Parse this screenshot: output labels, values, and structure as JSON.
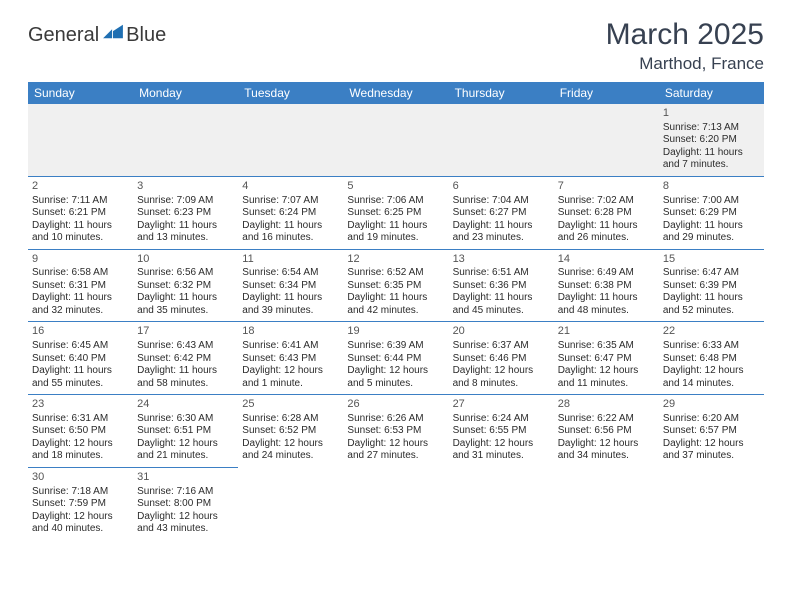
{
  "brand": {
    "word1": "General",
    "word2": "Blue"
  },
  "title": "March 2025",
  "location": "Marthod, France",
  "colors": {
    "header_bg": "#3b7fc4",
    "header_fg": "#ffffff",
    "rule": "#3b7fc4",
    "blank_bg": "#f0f0f0"
  },
  "dayHeaders": [
    "Sunday",
    "Monday",
    "Tuesday",
    "Wednesday",
    "Thursday",
    "Friday",
    "Saturday"
  ],
  "weeks": [
    [
      null,
      null,
      null,
      null,
      null,
      null,
      {
        "n": "1",
        "sr": "Sunrise: 7:13 AM",
        "ss": "Sunset: 6:20 PM",
        "d1": "Daylight: 11 hours",
        "d2": "and 7 minutes."
      }
    ],
    [
      {
        "n": "2",
        "sr": "Sunrise: 7:11 AM",
        "ss": "Sunset: 6:21 PM",
        "d1": "Daylight: 11 hours",
        "d2": "and 10 minutes."
      },
      {
        "n": "3",
        "sr": "Sunrise: 7:09 AM",
        "ss": "Sunset: 6:23 PM",
        "d1": "Daylight: 11 hours",
        "d2": "and 13 minutes."
      },
      {
        "n": "4",
        "sr": "Sunrise: 7:07 AM",
        "ss": "Sunset: 6:24 PM",
        "d1": "Daylight: 11 hours",
        "d2": "and 16 minutes."
      },
      {
        "n": "5",
        "sr": "Sunrise: 7:06 AM",
        "ss": "Sunset: 6:25 PM",
        "d1": "Daylight: 11 hours",
        "d2": "and 19 minutes."
      },
      {
        "n": "6",
        "sr": "Sunrise: 7:04 AM",
        "ss": "Sunset: 6:27 PM",
        "d1": "Daylight: 11 hours",
        "d2": "and 23 minutes."
      },
      {
        "n": "7",
        "sr": "Sunrise: 7:02 AM",
        "ss": "Sunset: 6:28 PM",
        "d1": "Daylight: 11 hours",
        "d2": "and 26 minutes."
      },
      {
        "n": "8",
        "sr": "Sunrise: 7:00 AM",
        "ss": "Sunset: 6:29 PM",
        "d1": "Daylight: 11 hours",
        "d2": "and 29 minutes."
      }
    ],
    [
      {
        "n": "9",
        "sr": "Sunrise: 6:58 AM",
        "ss": "Sunset: 6:31 PM",
        "d1": "Daylight: 11 hours",
        "d2": "and 32 minutes."
      },
      {
        "n": "10",
        "sr": "Sunrise: 6:56 AM",
        "ss": "Sunset: 6:32 PM",
        "d1": "Daylight: 11 hours",
        "d2": "and 35 minutes."
      },
      {
        "n": "11",
        "sr": "Sunrise: 6:54 AM",
        "ss": "Sunset: 6:34 PM",
        "d1": "Daylight: 11 hours",
        "d2": "and 39 minutes."
      },
      {
        "n": "12",
        "sr": "Sunrise: 6:52 AM",
        "ss": "Sunset: 6:35 PM",
        "d1": "Daylight: 11 hours",
        "d2": "and 42 minutes."
      },
      {
        "n": "13",
        "sr": "Sunrise: 6:51 AM",
        "ss": "Sunset: 6:36 PM",
        "d1": "Daylight: 11 hours",
        "d2": "and 45 minutes."
      },
      {
        "n": "14",
        "sr": "Sunrise: 6:49 AM",
        "ss": "Sunset: 6:38 PM",
        "d1": "Daylight: 11 hours",
        "d2": "and 48 minutes."
      },
      {
        "n": "15",
        "sr": "Sunrise: 6:47 AM",
        "ss": "Sunset: 6:39 PM",
        "d1": "Daylight: 11 hours",
        "d2": "and 52 minutes."
      }
    ],
    [
      {
        "n": "16",
        "sr": "Sunrise: 6:45 AM",
        "ss": "Sunset: 6:40 PM",
        "d1": "Daylight: 11 hours",
        "d2": "and 55 minutes."
      },
      {
        "n": "17",
        "sr": "Sunrise: 6:43 AM",
        "ss": "Sunset: 6:42 PM",
        "d1": "Daylight: 11 hours",
        "d2": "and 58 minutes."
      },
      {
        "n": "18",
        "sr": "Sunrise: 6:41 AM",
        "ss": "Sunset: 6:43 PM",
        "d1": "Daylight: 12 hours",
        "d2": "and 1 minute."
      },
      {
        "n": "19",
        "sr": "Sunrise: 6:39 AM",
        "ss": "Sunset: 6:44 PM",
        "d1": "Daylight: 12 hours",
        "d2": "and 5 minutes."
      },
      {
        "n": "20",
        "sr": "Sunrise: 6:37 AM",
        "ss": "Sunset: 6:46 PM",
        "d1": "Daylight: 12 hours",
        "d2": "and 8 minutes."
      },
      {
        "n": "21",
        "sr": "Sunrise: 6:35 AM",
        "ss": "Sunset: 6:47 PM",
        "d1": "Daylight: 12 hours",
        "d2": "and 11 minutes."
      },
      {
        "n": "22",
        "sr": "Sunrise: 6:33 AM",
        "ss": "Sunset: 6:48 PM",
        "d1": "Daylight: 12 hours",
        "d2": "and 14 minutes."
      }
    ],
    [
      {
        "n": "23",
        "sr": "Sunrise: 6:31 AM",
        "ss": "Sunset: 6:50 PM",
        "d1": "Daylight: 12 hours",
        "d2": "and 18 minutes."
      },
      {
        "n": "24",
        "sr": "Sunrise: 6:30 AM",
        "ss": "Sunset: 6:51 PM",
        "d1": "Daylight: 12 hours",
        "d2": "and 21 minutes."
      },
      {
        "n": "25",
        "sr": "Sunrise: 6:28 AM",
        "ss": "Sunset: 6:52 PM",
        "d1": "Daylight: 12 hours",
        "d2": "and 24 minutes."
      },
      {
        "n": "26",
        "sr": "Sunrise: 6:26 AM",
        "ss": "Sunset: 6:53 PM",
        "d1": "Daylight: 12 hours",
        "d2": "and 27 minutes."
      },
      {
        "n": "27",
        "sr": "Sunrise: 6:24 AM",
        "ss": "Sunset: 6:55 PM",
        "d1": "Daylight: 12 hours",
        "d2": "and 31 minutes."
      },
      {
        "n": "28",
        "sr": "Sunrise: 6:22 AM",
        "ss": "Sunset: 6:56 PM",
        "d1": "Daylight: 12 hours",
        "d2": "and 34 minutes."
      },
      {
        "n": "29",
        "sr": "Sunrise: 6:20 AM",
        "ss": "Sunset: 6:57 PM",
        "d1": "Daylight: 12 hours",
        "d2": "and 37 minutes."
      }
    ],
    [
      {
        "n": "30",
        "sr": "Sunrise: 7:18 AM",
        "ss": "Sunset: 7:59 PM",
        "d1": "Daylight: 12 hours",
        "d2": "and 40 minutes."
      },
      {
        "n": "31",
        "sr": "Sunrise: 7:16 AM",
        "ss": "Sunset: 8:00 PM",
        "d1": "Daylight: 12 hours",
        "d2": "and 43 minutes."
      },
      null,
      null,
      null,
      null,
      null
    ]
  ]
}
